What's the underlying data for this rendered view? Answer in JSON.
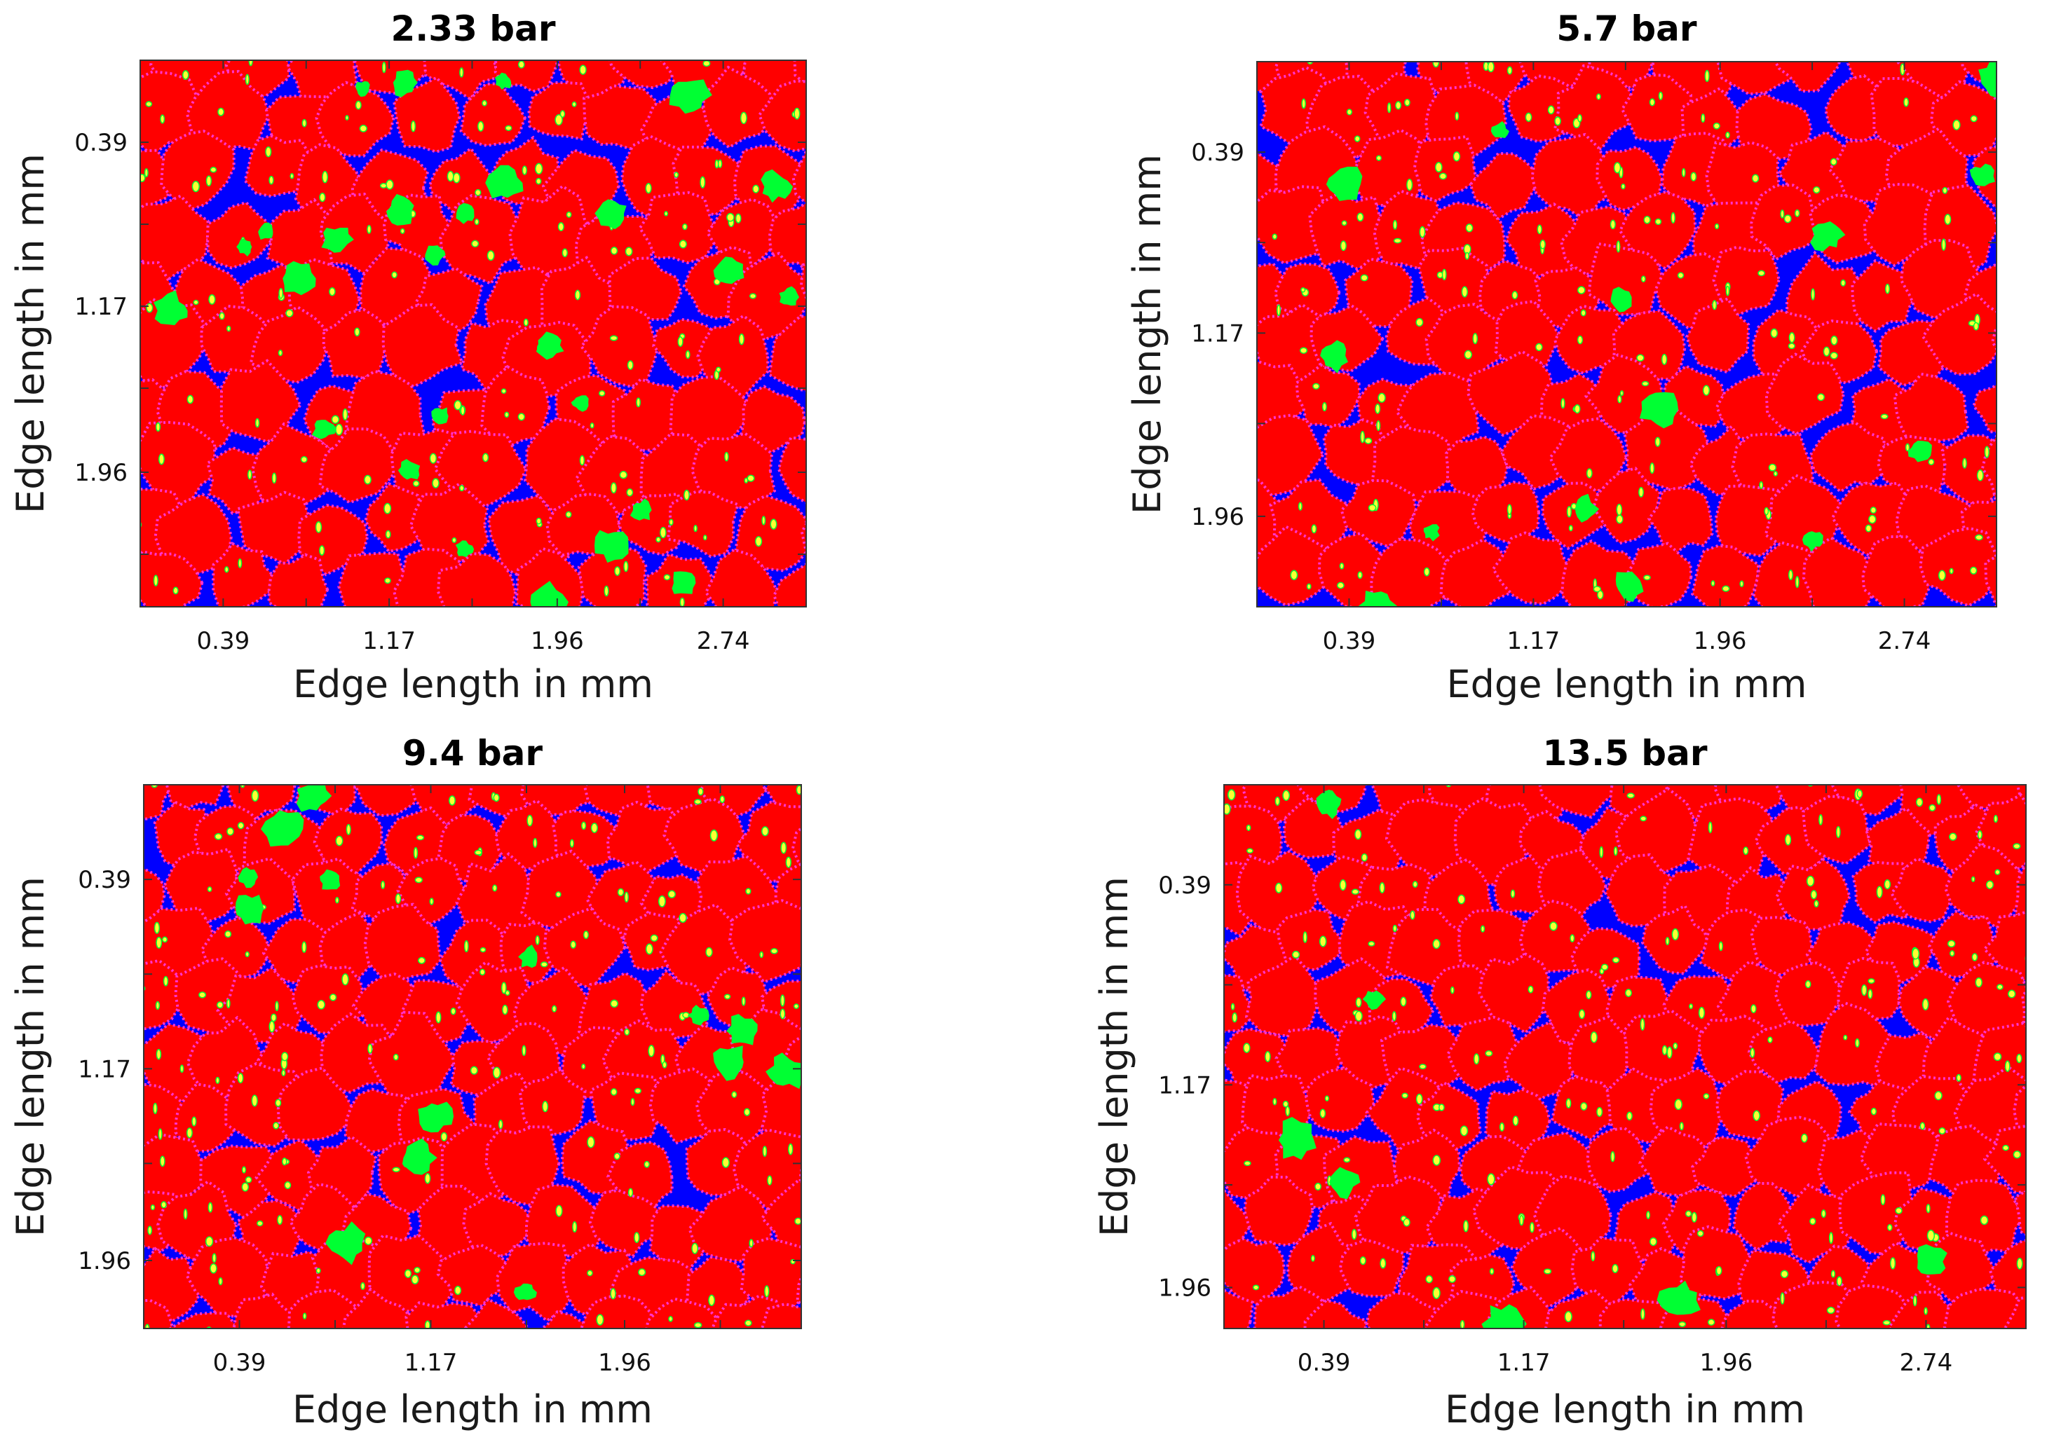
{
  "figure": {
    "description_colors": {
      "matrix": "#0000ff",
      "grain": "#ff0000",
      "boundary": "#ff33cc",
      "pore": "#00ff33",
      "highlight": "#ffff33"
    }
  },
  "chart_data": [
    {
      "type": "heatmap",
      "title": "2.33 bar",
      "xlabel": "Edge length in mm",
      "ylabel": "Edge length in mm",
      "xticks": [
        "0.39",
        "1.17",
        "1.96",
        "2.74"
      ],
      "yticks": [
        "0.39",
        "1.17",
        "1.96"
      ],
      "x_tick_values": [
        0.39,
        1.17,
        1.96,
        2.74
      ],
      "y_tick_values": [
        0.39,
        1.17,
        1.96
      ],
      "xlim": [
        0,
        3.13
      ],
      "ylim": [
        0,
        2.6
      ],
      "grain_fraction": 0.68,
      "pore_fraction": 0.03,
      "seed": 11
    },
    {
      "type": "heatmap",
      "title": "5.7 bar",
      "xlabel": "Edge length in mm",
      "ylabel": "Edge length in mm",
      "xticks": [
        "0.39",
        "1.17",
        "1.96",
        "2.74"
      ],
      "yticks": [
        "0.39",
        "1.17",
        "1.96"
      ],
      "x_tick_values": [
        0.39,
        1.17,
        1.96,
        2.74
      ],
      "y_tick_values": [
        0.39,
        1.17,
        1.96
      ],
      "xlim": [
        0,
        3.13
      ],
      "ylim": [
        0,
        2.35
      ],
      "grain_fraction": 0.74,
      "pore_fraction": 0.015,
      "seed": 23
    },
    {
      "type": "heatmap",
      "title": "9.4 bar",
      "xlabel": "Edge length in mm",
      "ylabel": "Edge length in mm",
      "xticks": [
        "0.39",
        "1.17",
        "1.96"
      ],
      "yticks": [
        "0.39",
        "1.17",
        "1.96"
      ],
      "x_tick_values": [
        0.39,
        1.17,
        1.96
      ],
      "y_tick_values": [
        0.39,
        1.17,
        1.96
      ],
      "xlim": [
        0,
        2.68
      ],
      "ylim": [
        0,
        2.24
      ],
      "grain_fraction": 0.82,
      "pore_fraction": 0.015,
      "seed": 37
    },
    {
      "type": "heatmap",
      "title": "13.5 bar",
      "xlabel": "Edge length in mm",
      "ylabel": "Edge length in mm",
      "xticks": [
        "0.39",
        "1.17",
        "1.96",
        "2.74"
      ],
      "yticks": [
        "0.39",
        "1.17",
        "1.96"
      ],
      "x_tick_values": [
        0.39,
        1.17,
        1.96,
        2.74
      ],
      "y_tick_values": [
        0.39,
        1.17,
        1.96
      ],
      "xlim": [
        0,
        3.13
      ],
      "ylim": [
        0,
        2.12
      ],
      "grain_fraction": 0.84,
      "pore_fraction": 0.008,
      "seed": 41
    }
  ]
}
